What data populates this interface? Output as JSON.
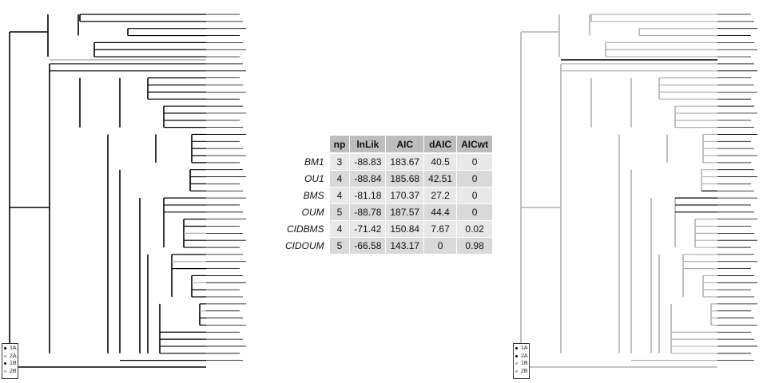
{
  "table": {
    "columns": [
      "np",
      "lnLik",
      "AIC",
      "dAIC",
      "AICwt"
    ],
    "rows": [
      {
        "model": "BM1",
        "values": [
          "3",
          "-88.83",
          "183.67",
          "40.5",
          "0"
        ]
      },
      {
        "model": "OU1",
        "values": [
          "4",
          "-88.84",
          "185.68",
          "42.51",
          "0"
        ]
      },
      {
        "model": "BMS",
        "values": [
          "4",
          "-81.18",
          "170.37",
          "27.2",
          "0"
        ]
      },
      {
        "model": "OUM",
        "values": [
          "5",
          "-88.78",
          "187.57",
          "44.4",
          "0"
        ]
      },
      {
        "model": "CIDBMS",
        "values": [
          "4",
          "-71.42",
          "150.84",
          "7.67",
          "0.02"
        ]
      },
      {
        "model": "CIDOUM",
        "values": [
          "5",
          "-66.58",
          "143.17",
          "0",
          "0.98"
        ]
      }
    ]
  },
  "legend_left": {
    "items": [
      {
        "label": "1A",
        "color": "#000000"
      },
      {
        "label": "2A",
        "color": "#b0b0b0"
      },
      {
        "label": "1B",
        "color": "#000000"
      },
      {
        "label": "2B",
        "color": "#b0b0b0"
      }
    ]
  },
  "legend_right": {
    "items": [
      {
        "label": "1A",
        "color": "#000000"
      },
      {
        "label": "2A",
        "color": "#000000"
      },
      {
        "label": "1B",
        "color": "#b0b0b0"
      },
      {
        "label": "2B",
        "color": "#b0b0b0"
      }
    ]
  },
  "colors": {
    "black_state": "#000000",
    "gray_state": "#b0b0b0"
  }
}
